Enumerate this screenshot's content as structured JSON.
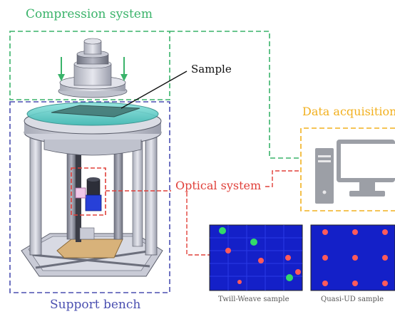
{
  "labels": {
    "compression": "Compression system",
    "sample": "Sample",
    "data_acquisition": "Data acquisition",
    "optical": "Optical system",
    "support": "Support bench",
    "twill": "Twill-Weave sample",
    "quasi": "Quasi-UD sample"
  },
  "colors": {
    "compression": "#3ab36a",
    "support": "#4a4fb0",
    "optical": "#e0403a",
    "data": "#f2b01e"
  },
  "icons": [
    "computer-icon",
    "arrow-down-icon"
  ]
}
